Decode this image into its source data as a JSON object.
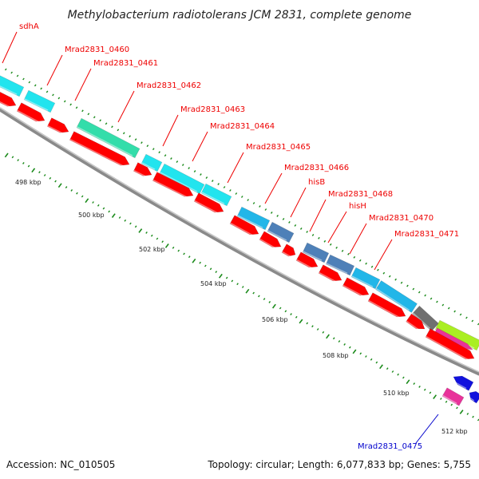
{
  "title": "Methylobacterium radiotolerans JCM 2831, complete genome",
  "footer": {
    "accession": "Accession: NC_010505",
    "summary": "Topology: circular; Length: 6,077,833 bp; Genes: 5,755"
  },
  "colors": {
    "forward_cds": "#ff0000",
    "upper_cyan": "#22e4ee",
    "upper_teal": "#33ddaa",
    "upper_lightblue": "#22b6e8",
    "upper_steel": "#4e80b8",
    "upper_gray": "#707070",
    "upper_lime": "#aaee22",
    "pink": "#e8339a",
    "blue": "#1111dd",
    "label_red": "#ee0000",
    "label_blue": "#0000cc",
    "backbone": "#8a8a8a",
    "tick_green": "#1a8a1a"
  },
  "kbp_labels": [
    "498 kbp",
    "500 kbp",
    "502 kbp",
    "504 kbp",
    "506 kbp",
    "508 kbp",
    "510 kbp",
    "512 kbp"
  ],
  "gene_labels": [
    {
      "text": "sdhA",
      "strand": "forward"
    },
    {
      "text": "Mrad2831_0460",
      "strand": "forward"
    },
    {
      "text": "Mrad2831_0461",
      "strand": "forward"
    },
    {
      "text": "Mrad2831_0462",
      "strand": "forward"
    },
    {
      "text": "Mrad2831_0463",
      "strand": "forward"
    },
    {
      "text": "Mrad2831_0464",
      "strand": "forward"
    },
    {
      "text": "Mrad2831_0465",
      "strand": "forward"
    },
    {
      "text": "Mrad2831_0466",
      "strand": "forward"
    },
    {
      "text": "hisB",
      "strand": "forward"
    },
    {
      "text": "Mrad2831_0468",
      "strand": "forward"
    },
    {
      "text": "hisH",
      "strand": "forward"
    },
    {
      "text": "Mrad2831_0470",
      "strand": "forward"
    },
    {
      "text": "Mrad2831_0471",
      "strand": "forward"
    },
    {
      "text": "Mrad2831_0475",
      "strand": "reverse"
    }
  ]
}
